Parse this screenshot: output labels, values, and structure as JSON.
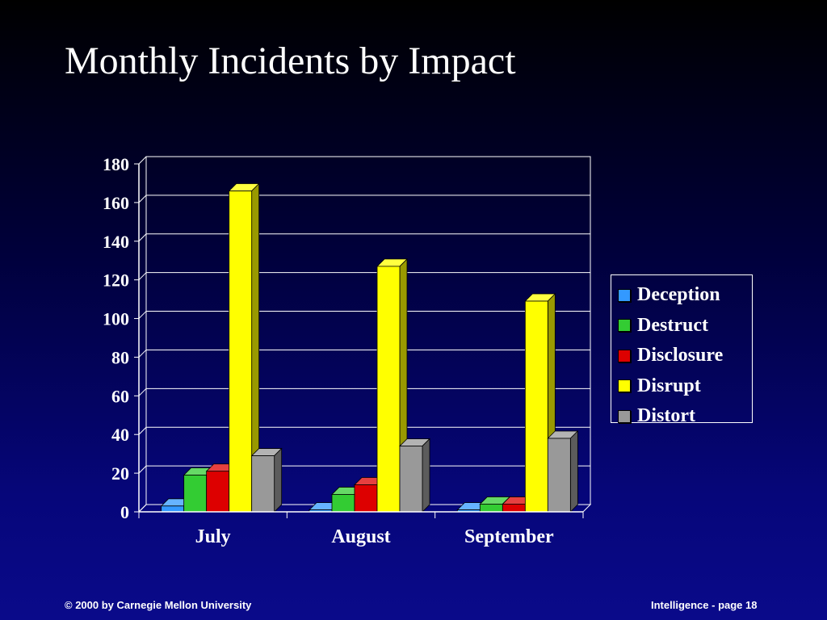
{
  "slide": {
    "title": "Monthly Incidents by Impact",
    "footer_left": "© 2000 by Carnegie Mellon University",
    "footer_right": "Intelligence - page 18"
  },
  "colors": {
    "background": "#00006e",
    "axis": "#ffffff"
  },
  "chart_data": {
    "type": "bar",
    "title": "",
    "xlabel": "",
    "ylabel": "",
    "ylim": [
      0,
      180
    ],
    "yticks": [
      0,
      20,
      40,
      60,
      80,
      100,
      120,
      140,
      160,
      180
    ],
    "grid": true,
    "legend_position": "right",
    "categories": [
      "July",
      "August",
      "September"
    ],
    "series": [
      {
        "name": "Deception",
        "color": "#3399ff",
        "values": [
          3,
          1,
          1
        ]
      },
      {
        "name": "Destruct",
        "color": "#33cc33",
        "values": [
          19,
          9,
          4
        ]
      },
      {
        "name": "Disclosure",
        "color": "#dd0000",
        "values": [
          21,
          14,
          4
        ]
      },
      {
        "name": "Disrupt",
        "color": "#ffff00",
        "values": [
          166,
          127,
          109
        ]
      },
      {
        "name": "Distort",
        "color": "#999999",
        "values": [
          29,
          34,
          38
        ]
      }
    ]
  }
}
